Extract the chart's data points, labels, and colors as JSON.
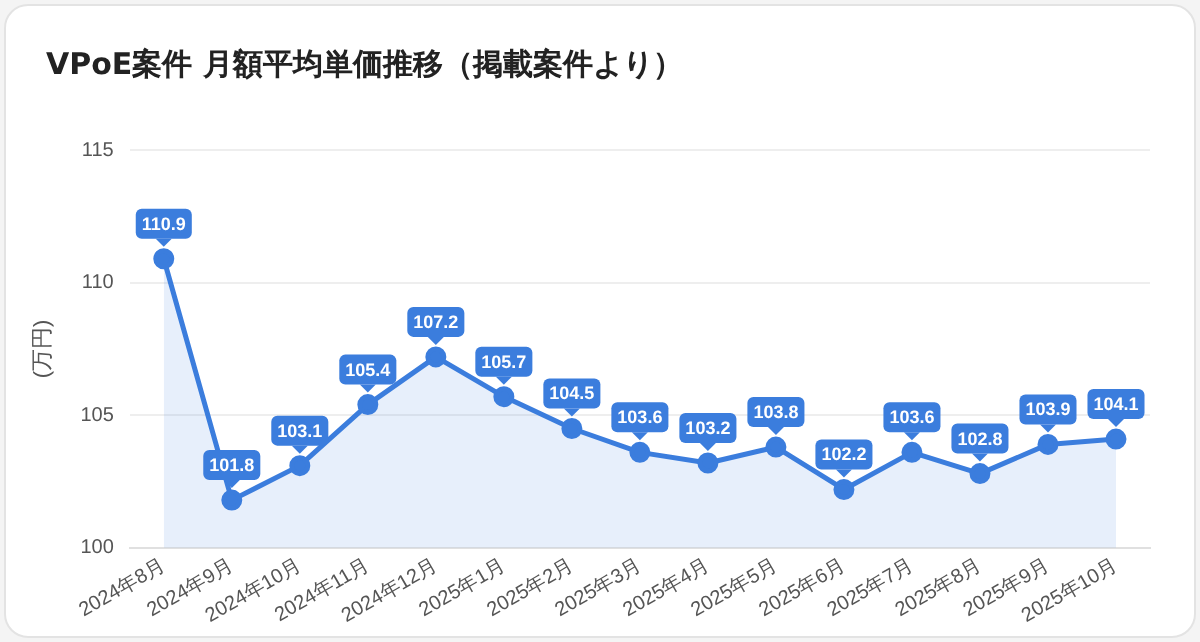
{
  "chart_data": {
    "type": "area",
    "title": "VPoE案件 月額平均単価推移（掲載案件より）",
    "ylabel": "(万円)",
    "categories": [
      "2024年8月",
      "2024年9月",
      "2024年10月",
      "2024年11月",
      "2024年12月",
      "2025年1月",
      "2025年2月",
      "2025年3月",
      "2025年4月",
      "2025年5月",
      "2025年6月",
      "2025年7月",
      "2025年8月",
      "2025年9月",
      "2025年10月"
    ],
    "series": [
      {
        "color": "#3b7ddd",
        "values": [
          110.9,
          101.8,
          103.1,
          105.4,
          107.2,
          105.7,
          104.5,
          103.6,
          103.2,
          103.8,
          102.2,
          103.6,
          102.8,
          103.9,
          104.1
        ]
      }
    ],
    "ylim": [
      100,
      115
    ],
    "yticks": [
      100,
      105,
      110,
      115
    ],
    "grid": "y",
    "legend": false,
    "marker": "circle",
    "line_style": "solid",
    "data_labels": true
  }
}
